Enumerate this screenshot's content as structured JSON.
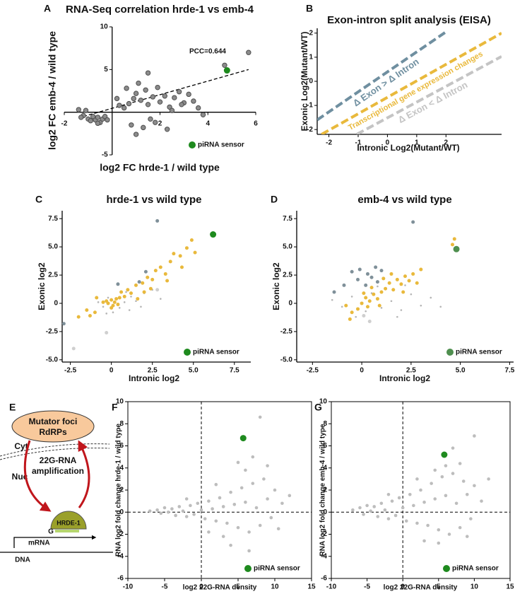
{
  "chart_data": [
    {
      "label": "A",
      "type": "scatter",
      "title": "RNA-Seq correlation hrde-1 vs emb-4",
      "x_label": "log2 FC hrde-1 / wild type",
      "y_label": "log2 FC emb-4 / wild type",
      "style": "origin",
      "xlim": [
        -2,
        6
      ],
      "ylim": [
        -5,
        10
      ],
      "xticks": [
        -2,
        2,
        4,
        6
      ],
      "yticks": [
        -5,
        5,
        10
      ],
      "legend": "lower right",
      "annotation": "PCC=0.644",
      "trendline": {
        "x": [
          -1.2,
          5.7
        ],
        "y": [
          -0.5,
          5
        ]
      },
      "series": [
        {
          "color": "#8c8c8c",
          "x": [
            -1.2,
            -1.0,
            -0.9,
            -0.7,
            -0.6,
            -0.8,
            -0.5,
            -0.4,
            -1.4,
            -1.1,
            -0.3,
            -0.6,
            -1.3,
            -0.2,
            0.5,
            0.7,
            0.9,
            1.0,
            1.2,
            1.4,
            1.5,
            1.7,
            1.9,
            2.0,
            2.2,
            2.4,
            2.6,
            2.8,
            3.0,
            3.2,
            3.4,
            3.6,
            3.8,
            0.8,
            1.0,
            1.3,
            1.6,
            0.6,
            1.1,
            1.8,
            2.3,
            1.5,
            2.5,
            4.7,
            5.7,
            0.3,
            0.2,
            2.9
          ],
          "y": [
            -0.4,
            -0.8,
            -1.0,
            -0.9,
            -0.6,
            -0.5,
            -1.2,
            -0.8,
            0.3,
            0.2,
            -0.5,
            -1.3,
            -0.6,
            -0.9,
            0.5,
            1.0,
            1.6,
            2.2,
            1.4,
            2.6,
            0.9,
            1.8,
            2.9,
            1.2,
            1.9,
            0.6,
            1.7,
            2.4,
            1.1,
            2.1,
            1.3,
            0.5,
            -0.3,
            -1.5,
            -2.6,
            -1.8,
            -0.8,
            2.8,
            3.4,
            -1.2,
            -2.0,
            4.6,
            0.2,
            5.5,
            7.0,
            0.8,
            1.6,
            0.9
          ]
        },
        {
          "name": "piRNA sensor",
          "color": "#1e8a1e",
          "x": [
            4.8
          ],
          "y": [
            4.9
          ]
        }
      ]
    },
    {
      "label": "B",
      "type": "line",
      "title": "Exon-intron split analysis (EISA)",
      "x_label": "Intronic Log2(Mutant/WT)",
      "y_label": "Exonic Log2(Mutant/WT)",
      "style": "L",
      "xlim": [
        -2.4,
        3.9
      ],
      "ylim": [
        -2.2,
        2.2
      ],
      "xticks": [
        -2,
        -1,
        0,
        1,
        2
      ],
      "yticks": [
        -2,
        -1,
        0,
        1,
        2
      ],
      "series": [
        {
          "name": "Δ Exon > Δ Intron",
          "color": "#6f8fa0",
          "dash": true,
          "x": [
            -2.4,
            2.0
          ],
          "y": [
            -1.6,
            2.05
          ]
        },
        {
          "name": "Transcriptional gene expression changes",
          "color": "#e9b93c",
          "dash": true,
          "x": [
            -2.25,
            3.9
          ],
          "y": [
            -2.2,
            2.0
          ]
        },
        {
          "name": "Δ Exon < Δ Intron",
          "color": "#c4c4c4",
          "dash": true,
          "x": [
            -1.05,
            3.9
          ],
          "y": [
            -2.2,
            1.03
          ]
        }
      ]
    },
    {
      "label": "C",
      "type": "scatter",
      "title": "hrde-1 vs wild type",
      "x_label": "Intronic log2",
      "y_label": "Exonic log2",
      "style": "L",
      "xlim": [
        -3,
        8.5
      ],
      "ylim": [
        -5.2,
        8.2
      ],
      "xticks": [
        -2.5,
        0,
        2.5,
        {
          "value": 5,
          "label": "5.0"
        },
        7.5
      ],
      "yticks": [
        {
          "value": -5,
          "label": "-5.0"
        },
        -2.5,
        0,
        2.5,
        {
          "value": 5,
          "label": "5.0"
        },
        7.5
      ],
      "legend": "lower right",
      "series": [
        {
          "color": "#b5b5b5",
          "x": [
            -0.5,
            0.3,
            0.8,
            1.2,
            -0.2,
            0.5,
            1.5,
            2.0,
            -0.8,
            0.1,
            1.8,
            2.5,
            0.9,
            -0.3,
            3.0,
            1.1
          ],
          "y": [
            -0.3,
            0.4,
            0.1,
            0.6,
            0.5,
            -0.4,
            0.2,
            0.9,
            0.1,
            -0.8,
            -0.3,
            1.2,
            1.0,
            -0.9,
            0.4,
            -0.6
          ]
        },
        {
          "color": "#e9b93c",
          "x": [
            -0.2,
            0,
            0.1,
            0.2,
            0.3,
            -0.3,
            0.4,
            0.5,
            0,
            -0.5,
            0.8,
            0.6,
            1.0,
            1.2,
            1.5,
            1.9,
            2.2,
            2.5,
            2.7,
            3.0,
            3.3,
            3.6,
            3.8,
            4.2,
            4.6,
            4.9,
            5.1,
            4.3,
            2.0,
            -1.5,
            -2.0,
            -1.0,
            -1.3,
            -0.9,
            1.6,
            2.4,
            3.4
          ],
          "y": [
            0,
            0.3,
            -0.2,
            0.1,
            0.4,
            0.2,
            -0.1,
            0.5,
            -0.4,
            0.1,
            0.6,
            1.0,
            1.2,
            0.9,
            1.6,
            1.8,
            2.3,
            2.1,
            2.9,
            3.2,
            2.6,
            3.7,
            4.4,
            4.2,
            4.9,
            5.6,
            4.5,
            3.2,
            1.0,
            -0.6,
            -1.2,
            -0.8,
            -1.1,
            0.5,
            0.4,
            1.3,
            2.0
          ]
        },
        {
          "color": "#7f9099",
          "x": [
            -2.9,
            2.8,
            1.7,
            2.1,
            0.4
          ],
          "y": [
            -1.8,
            7.3,
            1.9,
            2.8,
            1.7
          ]
        },
        {
          "color": "#cfcfcf",
          "x": [
            -2.3,
            -0.3,
            2.8
          ],
          "y": [
            -4.0,
            -2.6,
            1.2
          ]
        },
        {
          "name": "piRNA sensor",
          "color": "#1e8a1e",
          "x": [
            6.2
          ],
          "y": [
            6.1
          ]
        }
      ]
    },
    {
      "label": "D",
      "type": "scatter",
      "title": "emb-4 vs wild type",
      "x_label": "Intronic log2",
      "y_label": "Exonic log2",
      "style": "L",
      "xlim": [
        -3.3,
        7.7
      ],
      "ylim": [
        -5.2,
        8.2
      ],
      "xticks": [
        -2.5,
        0,
        2.5,
        {
          "value": 5,
          "label": "5.0"
        },
        7.5
      ],
      "yticks": [
        {
          "value": -5,
          "label": "-5.0"
        },
        -2.5,
        0,
        2.5,
        {
          "value": 5,
          "label": "5.0"
        },
        7.5
      ],
      "legend": "lower right",
      "series": [
        {
          "color": "#b5b5b5",
          "x": [
            -1.0,
            -0.5,
            0.2,
            1.0,
            1.5,
            2.0,
            2.5,
            3.0,
            -0.3,
            0.8,
            1.8,
            3.5,
            -1.5,
            0.5,
            2.2,
            4.0
          ],
          "y": [
            -0.3,
            0.6,
            -0.7,
            -0.4,
            0.2,
            -0.6,
            0.8,
            -0.2,
            -1.2,
            1.5,
            -1.2,
            0.5,
            0.3,
            0.9,
            1.6,
            -0.3
          ]
        },
        {
          "color": "#e9b93c",
          "x": [
            0,
            0.2,
            0.4,
            0.6,
            0.8,
            1.0,
            1.2,
            0.3,
            -0.2,
            -0.5,
            1.4,
            1.6,
            1.8,
            2.0,
            2.2,
            2.4,
            2.6,
            3.0,
            2.8,
            1.5,
            0.5,
            -0.6,
            0.9,
            1.1,
            2.1,
            4.7,
            4.6,
            -0.8,
            0.1
          ],
          "y": [
            0,
            0.5,
            0.2,
            0.8,
            0.4,
            1.0,
            1.3,
            -0.3,
            -0.5,
            -0.8,
            1.8,
            1.2,
            2.1,
            1.7,
            2.4,
            2.0,
            2.6,
            3.0,
            1.8,
            2.6,
            1.4,
            -1.4,
            -0.2,
            2.2,
            1.0,
            5.7,
            5.2,
            -0.2,
            0.9
          ]
        },
        {
          "color": "#7f9099",
          "x": [
            -0.9,
            -0.5,
            -0.2,
            0.2,
            0.5,
            0.8,
            1.0,
            -0.1,
            0.3,
            -1.4,
            2.6,
            0.7
          ],
          "y": [
            1.6,
            2.8,
            2.1,
            1.6,
            2.3,
            1.9,
            2.9,
            3.0,
            2.6,
            1.0,
            7.2,
            3.2
          ]
        },
        {
          "color": "#cfcfcf",
          "x": [
            0.4,
            0.1
          ],
          "y": [
            -1.6,
            -1.1
          ]
        },
        {
          "name": "piRNA sensor",
          "color": "#4f8f4f",
          "x": [
            4.8
          ],
          "y": [
            4.8
          ]
        }
      ]
    },
    {
      "label": "F",
      "type": "scatter",
      "x_label": "log2 22G-RNA density",
      "y_label": "RNA log2 fold change hrde-1 / wild type",
      "style": "box",
      "zero_lines": true,
      "xlim": [
        -10,
        15
      ],
      "ylim": [
        -6,
        10
      ],
      "xticks": [
        -10,
        -5,
        0,
        5,
        10,
        15
      ],
      "yticks": [
        -6,
        -4,
        -2,
        0,
        2,
        4,
        6,
        8,
        10
      ],
      "legend": "lower right",
      "series": [
        {
          "color": "#bdbdbd",
          "x": [
            -7,
            -6,
            -5.5,
            -5,
            -4.5,
            -4,
            -3.5,
            -3,
            -2.5,
            -2,
            -1.5,
            -1,
            -0.5,
            0,
            0.5,
            1,
            1.5,
            2,
            2.5,
            3,
            3.5,
            4,
            4.5,
            5,
            5.5,
            6,
            6.5,
            7,
            7.5,
            8,
            8.5,
            9,
            9.5,
            10,
            11,
            12,
            6,
            7,
            8,
            5,
            4,
            3,
            6.5,
            2,
            1,
            -2,
            9,
            10.5
          ],
          "y": [
            0.1,
            0.2,
            -0.1,
            0.4,
            0,
            0.3,
            -0.3,
            0.5,
            0.1,
            -0.4,
            0.6,
            -0.2,
            0.8,
            0.2,
            -0.6,
            1.0,
            0.3,
            -0.8,
            1.3,
            0.5,
            -1.0,
            1.8,
            0.7,
            -1.4,
            2.2,
            0.9,
            -1.8,
            2.6,
            0.4,
            -1.2,
            3.0,
            1.2,
            -0.5,
            2.0,
            0.8,
            1.5,
            3.8,
            5.0,
            8.6,
            4.5,
            -3.0,
            -2.2,
            -3.5,
            2.5,
            -1.8,
            1.2,
            4.2,
            -1.5
          ]
        },
        {
          "name": "piRNA sensor",
          "color": "#1e8a1e",
          "x": [
            5.7
          ],
          "y": [
            6.7
          ]
        }
      ]
    },
    {
      "label": "G",
      "type": "scatter",
      "x_label": "log2 22G-RNA density",
      "y_label": "RNA log2 fold change emb-4 / wild type",
      "style": "box",
      "zero_lines": true,
      "xlim": [
        -10,
        15
      ],
      "ylim": [
        -6,
        10
      ],
      "xticks": [
        -10,
        -5,
        0,
        5,
        10,
        15
      ],
      "yticks": [
        -6,
        -4,
        -2,
        0,
        2,
        4,
        6,
        8,
        10
      ],
      "legend": "lower right",
      "series": [
        {
          "color": "#bdbdbd",
          "x": [
            -7,
            -6,
            -5.5,
            -5,
            -4.5,
            -4,
            -3.5,
            -3,
            -2.5,
            -2,
            -1.5,
            -1,
            -0.5,
            0,
            0.5,
            1,
            1.5,
            2,
            2.5,
            3,
            3.5,
            4,
            4.5,
            5,
            5.5,
            6,
            6.5,
            7,
            7.5,
            8,
            8.5,
            9,
            9.5,
            10,
            11,
            12,
            6,
            7,
            8,
            10,
            3,
            5,
            2,
            -2,
            9,
            4.5
          ],
          "y": [
            0.2,
            0.4,
            -0.2,
            0.6,
            0.1,
            0.5,
            -0.4,
            0.8,
            0.2,
            -0.6,
            1.0,
            -0.3,
            1.3,
            0.4,
            -0.8,
            1.6,
            0.6,
            -1.0,
            2.0,
            0.9,
            -1.2,
            2.6,
            1.2,
            -1.6,
            3.2,
            1.5,
            -2.0,
            3.5,
            0.8,
            -1.4,
            2.8,
            1.6,
            -0.6,
            2.4,
            1.0,
            3.0,
            4.2,
            5.8,
            4.4,
            6.9,
            -2.6,
            -2.8,
            3.0,
            1.6,
            -2.2,
            3.8
          ]
        },
        {
          "name": "piRNA sensor",
          "color": "#1e8a1e",
          "x": [
            5.8
          ],
          "y": [
            5.2
          ]
        }
      ]
    }
  ],
  "diagram": {
    "label": "E",
    "foci": [
      "Mutator foci",
      "RdRPs"
    ],
    "cyt": "Cyt",
    "nuc": "Nuc",
    "amplification": [
      "22G-RNA",
      "amplification"
    ],
    "protein": "HRDE-1",
    "g": "G",
    "mrna": "mRNA",
    "dna": "DNA"
  }
}
